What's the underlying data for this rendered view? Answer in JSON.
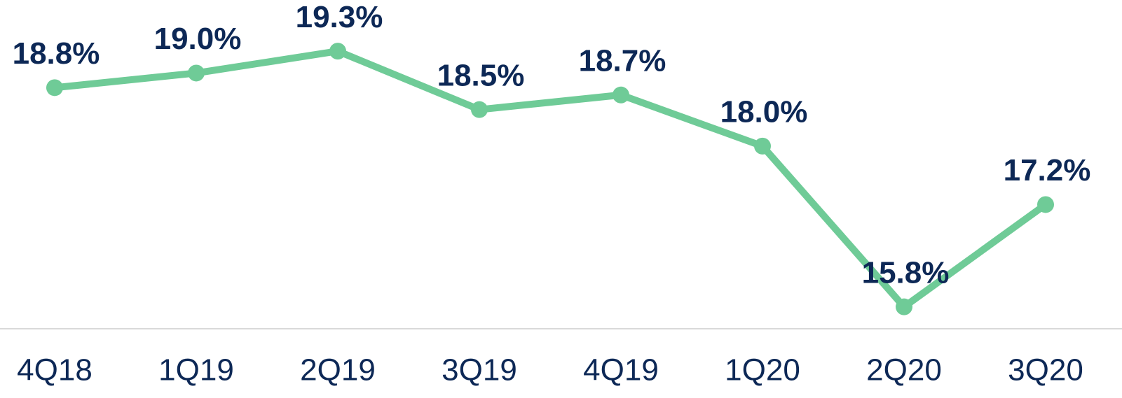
{
  "chart_data": {
    "type": "line",
    "categories": [
      "4Q18",
      "1Q19",
      "2Q19",
      "3Q19",
      "4Q19",
      "1Q20",
      "2Q20",
      "3Q20"
    ],
    "values": [
      18.8,
      19.0,
      19.3,
      18.5,
      18.7,
      18.0,
      15.8,
      17.2
    ],
    "value_labels": [
      "18.8%",
      "19.0%",
      "19.3%",
      "18.5%",
      "18.7%",
      "18.0%",
      "15.8%",
      "17.2%"
    ],
    "color": "#6fcb97",
    "ylim": [
      15.5,
      20
    ]
  }
}
